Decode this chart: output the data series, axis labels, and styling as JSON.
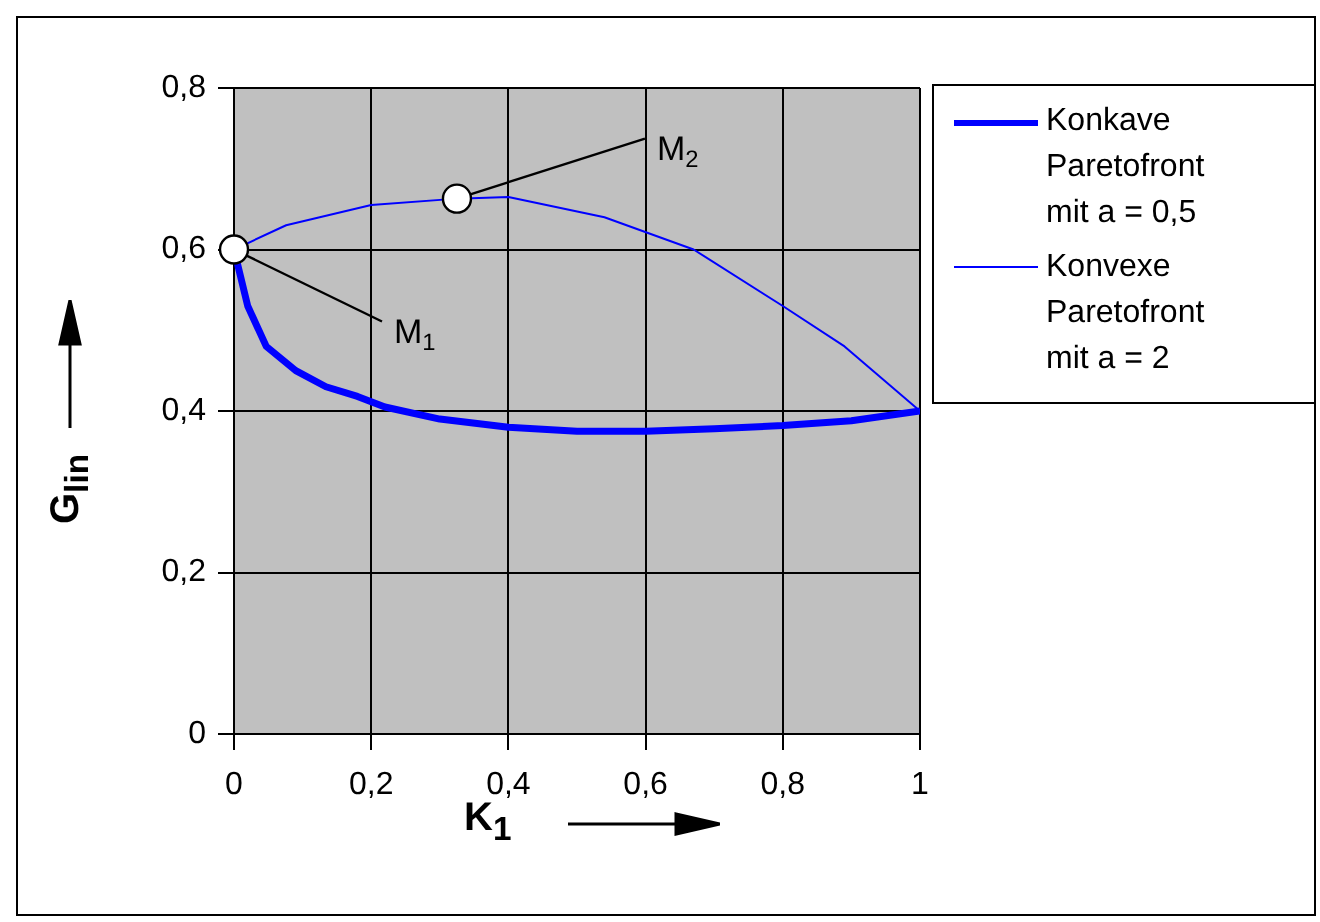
{
  "chart_data": {
    "type": "line",
    "xlabel": "K$_{1}$",
    "ylabel": "G$_{lin}$",
    "xlim": [
      0,
      1
    ],
    "xticks": [
      {
        "value": 0,
        "label": "0"
      },
      {
        "value": 0.2,
        "label": "0,2"
      },
      {
        "value": 0.4,
        "label": "0,4"
      },
      {
        "value": 0.6,
        "label": "0,6"
      },
      {
        "value": 0.8,
        "label": "0,8"
      },
      {
        "value": 1,
        "label": "1"
      }
    ],
    "ylim": [
      0,
      0.8
    ],
    "yticks": [
      {
        "value": 0,
        "label": "0"
      },
      {
        "value": 0.2,
        "label": "0,2"
      },
      {
        "value": 0.4,
        "label": "0,4"
      },
      {
        "value": 0.6,
        "label": "0,6"
      },
      {
        "value": 0.8,
        "label": "0,8"
      }
    ],
    "grid": true,
    "legend": "right",
    "marker": "none",
    "line_style": "solid",
    "series": [
      {
        "name": "Konkave Paretofront mit a = 0,5",
        "color": "#0000ff",
        "x": [
          0,
          0.02,
          0.047,
          0.09,
          0.134,
          0.18,
          0.22,
          0.3,
          0.4,
          0.5,
          0.6,
          0.7,
          0.8,
          0.9,
          1
        ],
        "values": [
          0.6,
          0.53,
          0.48,
          0.45,
          0.43,
          0.418,
          0.405,
          0.39,
          0.38,
          0.375,
          0.375,
          0.378,
          0.382,
          0.388,
          0.4
        ]
      },
      {
        "name": "Konvexe Paretofront mit a = 2",
        "color": "#0000ff",
        "x": [
          0,
          0.076,
          0.2,
          0.325,
          0.4,
          0.54,
          0.67,
          0.8,
          0.89,
          1
        ],
        "values": [
          0.6,
          0.63,
          0.655,
          0.663,
          0.665,
          0.64,
          0.6,
          0.53,
          0.48,
          0.4
        ]
      }
    ],
    "annotations": [
      {
        "text": "M$_{1}$",
        "x": 0,
        "y": 0.6
      },
      {
        "text": "M$_{2}$",
        "x": 0.325,
        "y": 0.663
      }
    ]
  }
}
